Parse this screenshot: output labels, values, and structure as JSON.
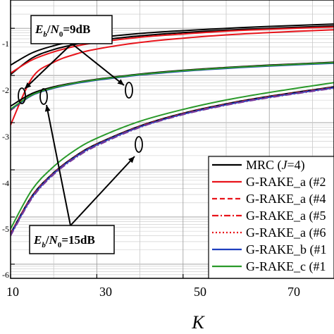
{
  "chart_data": {
    "type": "line",
    "xlabel": "K",
    "ylabel": "",
    "xlim": [
      10,
      85
    ],
    "ylim_log10": [
      -6.3,
      -0.4
    ],
    "x_ticks": [
      "10",
      "30",
      "50",
      "70"
    ],
    "y_ticks": [
      "-1",
      "-2",
      "-3",
      "-4",
      "-5",
      "-6"
    ],
    "y_scale": "log",
    "grid": true,
    "legend_position": "bottom-right",
    "legend": [
      {
        "text": "MRC (J=4)",
        "color": "#000000",
        "dash": "solid"
      },
      {
        "text": "G-RAKE_a (#2",
        "color": "#e8141b",
        "dash": "solid"
      },
      {
        "text": "G-RAKE_a (#4",
        "color": "#e8141b",
        "dash": "dashed"
      },
      {
        "text": "G-RAKE_a (#5",
        "color": "#e8141b",
        "dash": "dashdot"
      },
      {
        "text": "G-RAKE_a (#6",
        "color": "#e8141b",
        "dash": "dotted"
      },
      {
        "text": "G-RAKE_b (#1",
        "color": "#1f3fbf",
        "dash": "solid"
      },
      {
        "text": "G-RAKE_c (#1",
        "color": "#2a9a2a",
        "dash": "solid"
      }
    ],
    "annotations": [
      {
        "text": "Eb/N0=9dB"
      },
      {
        "text": "Eb/N0=15dB"
      }
    ],
    "x": [
      10,
      15,
      20,
      25,
      30,
      40,
      50,
      60,
      70,
      85
    ],
    "series": [
      {
        "name": "MRC (J=4)",
        "group": "9dB",
        "color": "#000000",
        "dash": "solid",
        "values": [
          -1.78,
          -1.52,
          -1.37,
          -1.27,
          -1.2,
          -1.11,
          -1.05,
          -1.0,
          -0.96,
          -0.91
        ]
      },
      {
        "name": "MRC (J=4)",
        "group": "9dB",
        "color": "#000000",
        "dash": "solid",
        "values": [
          -1.98,
          -1.63,
          -1.45,
          -1.34,
          -1.26,
          -1.16,
          -1.09,
          -1.04,
          -1.0,
          -0.95
        ]
      },
      {
        "name": "G-RAKE_a (#2",
        "group": "9dB",
        "color": "#e8141b",
        "dash": "solid",
        "values": [
          -1.95,
          -1.67,
          -1.5,
          -1.38,
          -1.3,
          -1.19,
          -1.12,
          -1.06,
          -1.02,
          -0.97
        ]
      },
      {
        "name": "G-RAKE_a (#2",
        "group": "9dB",
        "color": "#e8141b",
        "dash": "solid",
        "values": [
          -3.05,
          -2.05,
          -1.72,
          -1.55,
          -1.44,
          -1.3,
          -1.21,
          -1.14,
          -1.09,
          -1.03
        ]
      },
      {
        "name": "MRC (J=4)",
        "group": "9dB",
        "color": "#000000",
        "dash": "solid",
        "values": [
          -2.65,
          -2.38,
          -2.24,
          -2.15,
          -2.08,
          -1.97,
          -1.89,
          -1.83,
          -1.78,
          -1.72
        ]
      },
      {
        "name": "G-RAKE_a (#4",
        "group": "9dB",
        "color": "#e8141b",
        "dash": "dashed",
        "values": [
          -2.74,
          -2.42,
          -2.26,
          -2.16,
          -2.09,
          -1.98,
          -1.9,
          -1.84,
          -1.79,
          -1.73
        ]
      },
      {
        "name": "G-RAKE_b (#1",
        "group": "9dB",
        "color": "#1f3fbf",
        "dash": "solid",
        "values": [
          -2.73,
          -2.42,
          -2.27,
          -2.17,
          -2.1,
          -1.99,
          -1.91,
          -1.85,
          -1.8,
          -1.74
        ]
      },
      {
        "name": "G-RAKE_c (#1",
        "group": "9dB",
        "color": "#2a9a2a",
        "dash": "solid",
        "values": [
          -2.71,
          -2.41,
          -2.26,
          -2.16,
          -2.09,
          -1.98,
          -1.9,
          -1.84,
          -1.79,
          -1.73
        ]
      },
      {
        "name": "G-RAKE_c (#1",
        "group": "15dB",
        "color": "#2a9a2a",
        "dash": "solid",
        "values": [
          -5.25,
          -4.42,
          -3.93,
          -3.58,
          -3.33,
          -2.97,
          -2.72,
          -2.52,
          -2.36,
          -2.15
        ]
      },
      {
        "name": "MRC (J=4)",
        "group": "15dB",
        "color": "#000000",
        "dash": "solid",
        "values": [
          -5.35,
          -4.55,
          -4.06,
          -3.71,
          -3.45,
          -3.07,
          -2.8,
          -2.6,
          -2.44,
          -2.24
        ]
      },
      {
        "name": "G-RAKE_a (#4",
        "group": "15dB",
        "color": "#e8141b",
        "dash": "dashed",
        "values": [
          -5.36,
          -4.56,
          -4.07,
          -3.72,
          -3.46,
          -3.08,
          -2.81,
          -2.61,
          -2.45,
          -2.25
        ]
      },
      {
        "name": "G-RAKE_b (#1",
        "group": "15dB",
        "color": "#1f3fbf",
        "dash": "solid",
        "values": [
          -5.38,
          -4.58,
          -4.08,
          -3.73,
          -3.47,
          -3.09,
          -2.82,
          -2.62,
          -2.46,
          -2.26
        ]
      },
      {
        "name": "G-RAKE_a (#5",
        "group": "15dB",
        "color": "#7a3a9a",
        "dash": "dashdot",
        "values": [
          -5.4,
          -4.6,
          -4.1,
          -3.75,
          -3.49,
          -3.1,
          -2.83,
          -2.63,
          -2.47,
          -2.27
        ]
      }
    ]
  }
}
